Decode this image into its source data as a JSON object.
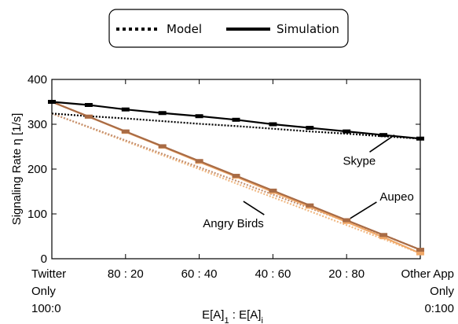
{
  "chart_data": {
    "type": "line",
    "xlabel": "E[A]_1 : E[A]_i",
    "ylabel": "Signaling Rate η [1/s]",
    "xlim": [
      0,
      1
    ],
    "ylim": [
      0,
      400
    ],
    "x_ticks": [
      {
        "x": 0.0,
        "lines": [
          "Twitter",
          "Only",
          "100:0"
        ]
      },
      {
        "x": 0.2,
        "lines": [
          "80 : 20"
        ]
      },
      {
        "x": 0.4,
        "lines": [
          "60 : 40"
        ]
      },
      {
        "x": 0.6,
        "lines": [
          "40 : 60"
        ]
      },
      {
        "x": 0.8,
        "lines": [
          "20 : 80"
        ]
      },
      {
        "x": 1.0,
        "lines": [
          "Other App",
          "Only",
          "0:100"
        ]
      }
    ],
    "y_ticks": [
      0,
      100,
      200,
      300,
      400
    ],
    "legend": {
      "placement": "top-center",
      "entries": [
        {
          "label": "Model",
          "style": "dotted"
        },
        {
          "label": "Simulation",
          "style": "solid"
        }
      ]
    },
    "x": [
      0,
      0.1,
      0.2,
      0.3,
      0.4,
      0.5,
      0.6,
      0.7,
      0.8,
      0.9,
      1.0
    ],
    "series": [
      {
        "app": "Skype",
        "color": "#000000",
        "simulation": [
          350,
          343,
          333,
          325,
          318,
          310,
          300,
          292,
          284,
          276,
          268
        ],
        "model": [
          324,
          318,
          313,
          307,
          301,
          296,
          290,
          284,
          279,
          273,
          268
        ]
      },
      {
        "app": "Angry Birds",
        "color": "#F0A868",
        "model_color": "#F0B882",
        "simulation": [
          350,
          317,
          283,
          250,
          216,
          183,
          149,
          116,
          82,
          48,
          12
        ],
        "model": [
          324,
          293,
          262,
          231,
          200,
          168,
          137,
          106,
          75,
          44,
          12
        ]
      },
      {
        "app": "Aupeo",
        "color": "#A86B45",
        "model_color": "#C49070",
        "simulation": [
          350,
          317,
          284,
          251,
          218,
          185,
          152,
          119,
          86,
          53,
          20
        ],
        "model": [
          324,
          294,
          264,
          234,
          204,
          174,
          143,
          113,
          83,
          53,
          20
        ]
      }
    ],
    "annotations": [
      {
        "text": "Skype",
        "x": 0.79,
        "y": 210,
        "arrow_to": [
          0.93,
          276
        ]
      },
      {
        "text": "Aupeo",
        "x": 0.89,
        "y": 130,
        "arrow_to": [
          0.81,
          90
        ]
      },
      {
        "text": "Angry Birds",
        "x": 0.41,
        "y": 70,
        "arrow_to": [
          0.52,
          128
        ]
      }
    ]
  }
}
